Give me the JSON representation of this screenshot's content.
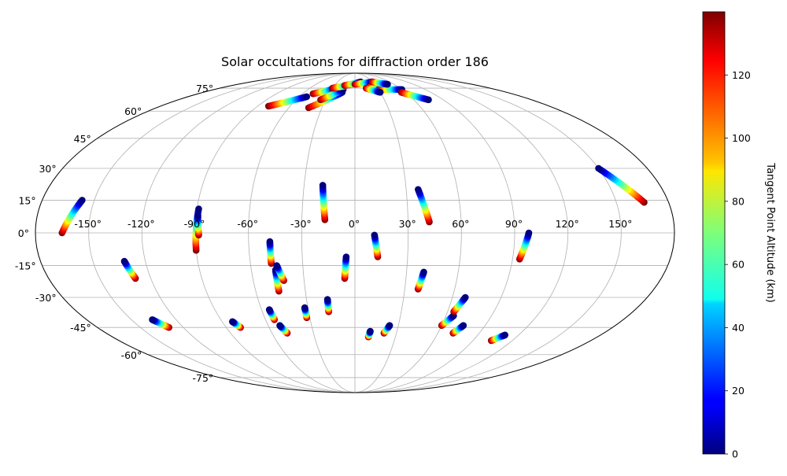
{
  "chart_data": {
    "type": "scatter",
    "projection": "mollweide",
    "title": "Solar occultations for diffraction order 186",
    "x_ticks": [
      "-150°",
      "-120°",
      "-90°",
      "-60°",
      "-30°",
      "0°",
      "30°",
      "60°",
      "90°",
      "120°",
      "150°"
    ],
    "x_tick_values": [
      -150,
      -120,
      -90,
      -60,
      -30,
      0,
      30,
      60,
      90,
      120,
      150
    ],
    "y_ticks": [
      "75°",
      "60°",
      "45°",
      "30°",
      "15°",
      "0°",
      "-15°",
      "-30°",
      "-45°",
      "-60°",
      "-75°"
    ],
    "y_tick_values": [
      75,
      60,
      45,
      30,
      15,
      0,
      -15,
      -30,
      -45,
      -60,
      -75
    ],
    "grid": true,
    "colorbar": {
      "label": "Tangent Point Altitude (km)",
      "ticks": [
        "0",
        "20",
        "40",
        "60",
        "80",
        "100",
        "120"
      ],
      "tick_values": [
        0,
        20,
        40,
        60,
        80,
        100,
        120
      ],
      "range": [
        0,
        140
      ],
      "colormap": "jet"
    },
    "tracks": [
      {
        "lon0": -165,
        "lat0": 0,
        "lon1": -157,
        "lat1": 15
      },
      {
        "lon0": -129,
        "lat0": -21,
        "lon1": -132,
        "lat1": -13
      },
      {
        "lon0": -130,
        "lat0": -45,
        "lon1": -136,
        "lat1": -41
      },
      {
        "lon0": -90,
        "lat0": -8,
        "lon1": -89,
        "lat1": 11
      },
      {
        "lon0": -88,
        "lat0": -1,
        "lon1": -89,
        "lat1": 8
      },
      {
        "lon0": -80,
        "lat0": -45,
        "lon1": -83,
        "lat1": -42
      },
      {
        "lon0": -48,
        "lat0": -14,
        "lon1": -48,
        "lat1": -4
      },
      {
        "lon0": -46,
        "lat0": -27,
        "lon1": -46,
        "lat1": -17
      },
      {
        "lon0": -42,
        "lat0": -22,
        "lon1": -45,
        "lat1": -15
      },
      {
        "lon0": -54,
        "lat0": -41,
        "lon1": -55,
        "lat1": -36
      },
      {
        "lon0": -49,
        "lat0": -48,
        "lon1": -52,
        "lat1": -44
      },
      {
        "lon0": -32,
        "lat0": -40,
        "lon1": -32,
        "lat1": -35
      },
      {
        "lon0": -17,
        "lat0": -37,
        "lon1": -17,
        "lat1": -31
      },
      {
        "lon0": -17,
        "lat0": 6,
        "lon1": -19,
        "lat1": 22
      },
      {
        "lon0": -6,
        "lat0": -21,
        "lon1": -5,
        "lat1": -11
      },
      {
        "lon0": 13,
        "lat0": -11,
        "lon1": 11,
        "lat1": -1
      },
      {
        "lon0": 10,
        "lat0": -50,
        "lon1": 11,
        "lat1": -47
      },
      {
        "lon0": 21,
        "lat0": -48,
        "lon1": 24,
        "lat1": -44
      },
      {
        "lon0": 42,
        "lat0": 5,
        "lon1": 37,
        "lat1": 20
      },
      {
        "lon0": 38,
        "lat0": -26,
        "lon1": 40,
        "lat1": -18
      },
      {
        "lon0": 60,
        "lat0": -44,
        "lon1": 65,
        "lat1": -39
      },
      {
        "lon0": 64,
        "lat0": -37,
        "lon1": 68,
        "lat1": -30
      },
      {
        "lon0": 71,
        "lat0": -48,
        "lon1": 75,
        "lat1": -44
      },
      {
        "lon0": 94,
        "lat0": -12,
        "lon1": 98,
        "lat1": 0
      },
      {
        "lon0": 104,
        "lat0": -52,
        "lon1": 110,
        "lat1": -49
      },
      {
        "lon0": 166,
        "lat0": 14,
        "lon1": 150,
        "lat1": 30
      },
      {
        "lon0": -80,
        "lat0": 63,
        "lon1": -52,
        "lat1": 69
      },
      {
        "lon0": -42,
        "lat0": 62,
        "lon1": -15,
        "lat1": 72
      },
      {
        "lon0": -48,
        "lat0": 71,
        "lon1": -25,
        "lat1": 75
      },
      {
        "lon0": -35,
        "lat0": 67,
        "lon1": -15,
        "lat1": 74
      },
      {
        "lon0": -30,
        "lat0": 75,
        "lon1": -5,
        "lat1": 78
      },
      {
        "lon0": -15,
        "lat0": 77,
        "lon1": 10,
        "lat1": 80
      },
      {
        "lon0": 0,
        "lat0": 78,
        "lon1": 30,
        "lat1": 80
      },
      {
        "lon0": 20,
        "lat0": 76,
        "lon1": 45,
        "lat1": 77
      },
      {
        "lon0": 30,
        "lat0": 74,
        "lon1": 60,
        "lat1": 74
      },
      {
        "lon0": 55,
        "lat0": 72,
        "lon1": 75,
        "lat1": 67
      },
      {
        "lon0": 15,
        "lat0": 75,
        "lon1": 30,
        "lat1": 72
      },
      {
        "lon0": 30,
        "lat0": 80,
        "lon1": 50,
        "lat1": 78
      }
    ]
  }
}
